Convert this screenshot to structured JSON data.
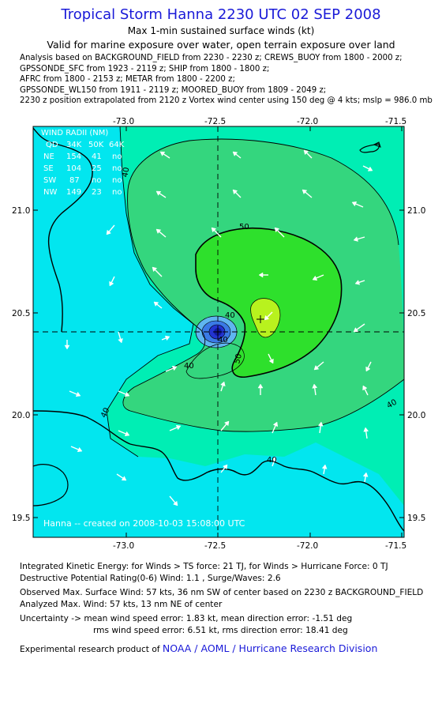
{
  "header": {
    "title": "Tropical Storm Hanna 2230 UTC 02 SEP 2008",
    "subtitle1": "Max 1-min sustained surface winds (kt)",
    "subtitle2": "Valid for marine exposure over water, open terrain exposure over land"
  },
  "analysis_lines": [
    "Analysis based on  BACKGROUND_FIELD from 2230 - 2230 z;  CREWS_BUOY from 1800 - 2000 z;",
    "GPSSONDE_SFC from 1923 - 2119 z;  SHIP from 1800 - 1800 z;",
    "AFRC from 1800 - 2153 z;  METAR from 1800 - 2200 z;",
    "GPSSONDE_WL150 from 1911 - 2119 z;  MOORED_BUOY from 1809 - 2049 z;",
    "2230 z position extrapolated from 2120 z Vortex wind center using 150 deg @ 4 kts; mslp = 986.0 mb"
  ],
  "map": {
    "lon_ticks": [
      "-73.0",
      "-72.5",
      "-72.0",
      "-71.5"
    ],
    "lat_ticks": [
      "21.0",
      "20.5",
      "20.0",
      "19.5"
    ],
    "contour_labels": [
      "50",
      "40",
      "40",
      "50",
      "40",
      "40",
      "40",
      "40",
      "40"
    ],
    "center": {
      "lon": -72.5,
      "lat": 20.4
    },
    "max_wind_marker": {
      "lon": -72.24,
      "lat": 20.47
    },
    "fill_colors": {
      "lt34": "#02e6ef",
      "kt34_40": "#00eeb4",
      "kt40_50": "#34d67e",
      "kt50_55": "#2ee02c",
      "gt55": "#b8f21e",
      "eye": "#2233d0"
    },
    "wind_radii": {
      "title": "WIND RADII (NM)",
      "header": [
        "QD",
        "34K",
        "50K",
        "64K"
      ],
      "rows": [
        [
          "NE",
          "154",
          "41",
          "no"
        ],
        [
          "SE",
          "104",
          "25",
          "no"
        ],
        [
          "SW",
          "87",
          "no",
          "no"
        ],
        [
          "NW",
          "149",
          "23",
          "no"
        ]
      ]
    },
    "stamp": "Hanna -- created on 2008-10-03 15:08:00 UTC"
  },
  "footer": {
    "ike": "Integrated Kinetic Energy:  for Winds > TS force: 21 TJ,  for Winds > Hurricane Force: 0 TJ",
    "dpr": "Destructive Potential Rating(0-6)   Wind: 1.1 , Surge/Waves: 2.6",
    "observed": "Observed Max. Surface Wind: 57 kts, 36 nm SW of center based on 2230 z BACKGROUND_FIELD",
    "analyzed": "Analyzed Max. Wind: 57 kts, 13 nm NE of center",
    "uncertainty1": "Uncertainty -> mean wind speed error: 1.83 kt,   mean direction error:  -1.51 deg",
    "uncertainty2": "rms wind speed error: 6.51 kt,   rms direction error: 18.41 deg",
    "credit_prefix": "Experimental research product of ",
    "credit_org": "NOAA / AOML / Hurricane Research Division"
  }
}
